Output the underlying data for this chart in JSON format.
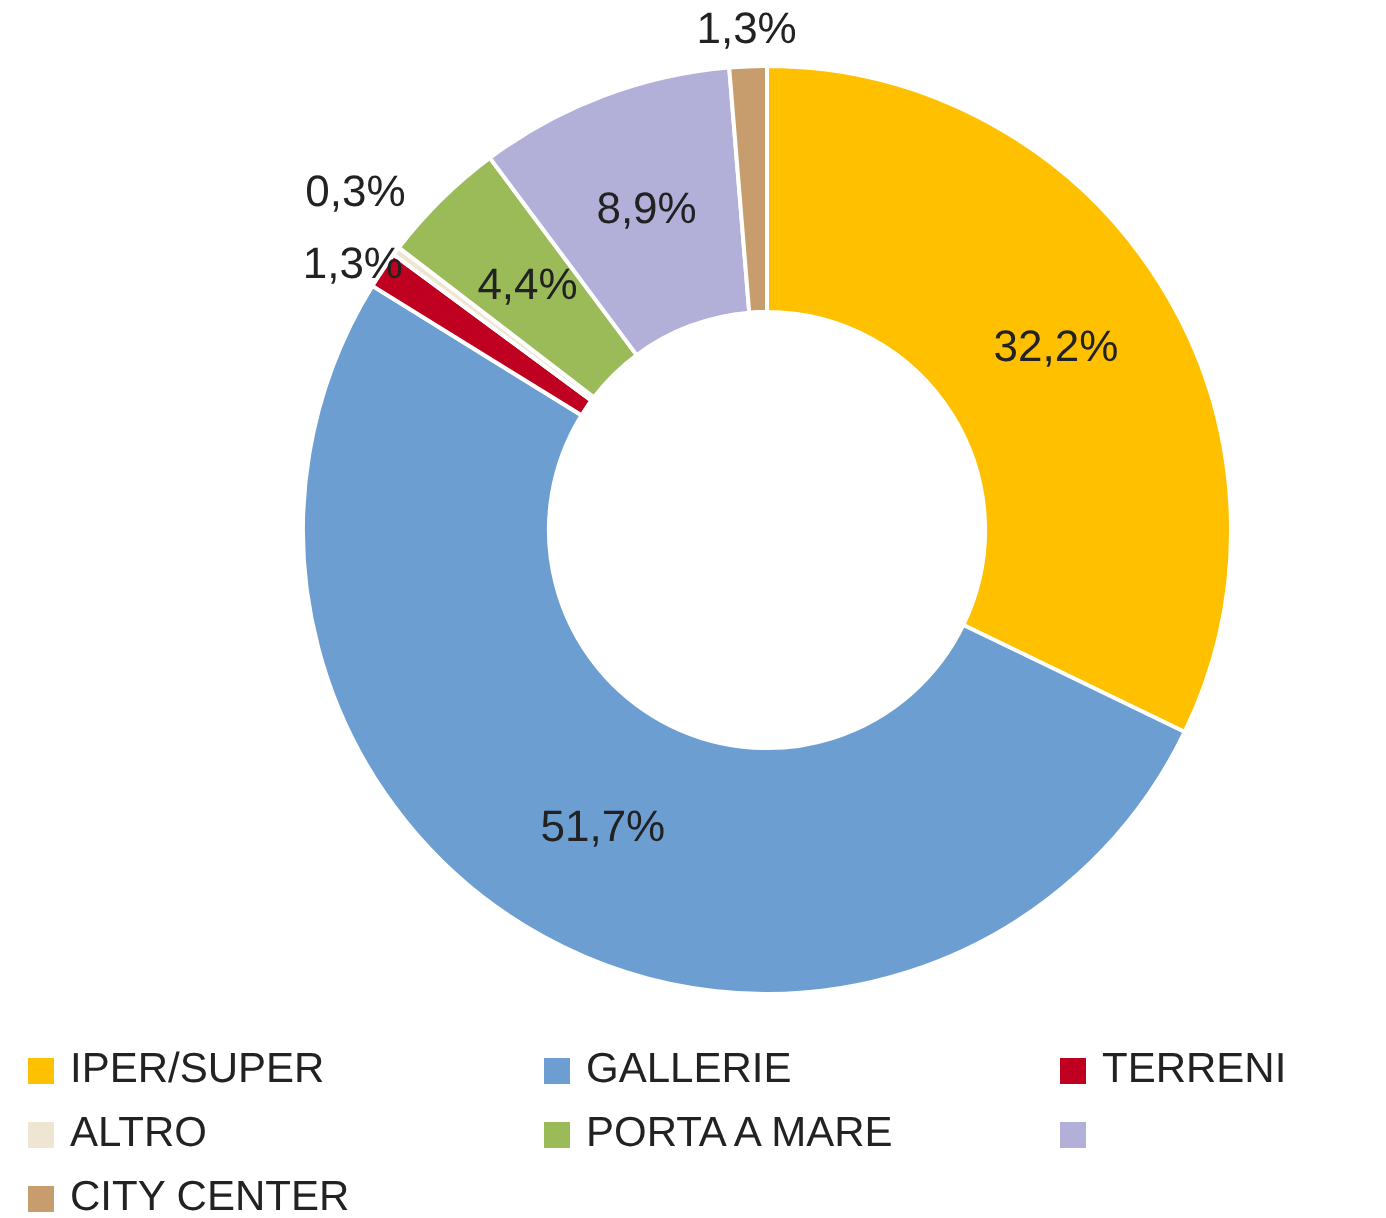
{
  "chart_data": {
    "type": "donut",
    "categories": [
      "IPER/SUPER",
      "GALLERIE",
      "TERRENI",
      "ALTRO",
      "PORTA A MARE",
      null,
      "CITY CENTER"
    ],
    "values": [
      32.2,
      51.7,
      1.3,
      0.3,
      4.4,
      8.9,
      1.3
    ],
    "colors": [
      "#ffc000",
      "#6d9ed2",
      "#c00020",
      "#eee6d3",
      "#9bbb59",
      "#b2b0d8",
      "#c89d6d"
    ],
    "value_labels": [
      "32,2%",
      "51,7%",
      "1,3%",
      "0,3%",
      "4,4%",
      "8,9%",
      "1,3%"
    ],
    "legend": "bottom"
  }
}
